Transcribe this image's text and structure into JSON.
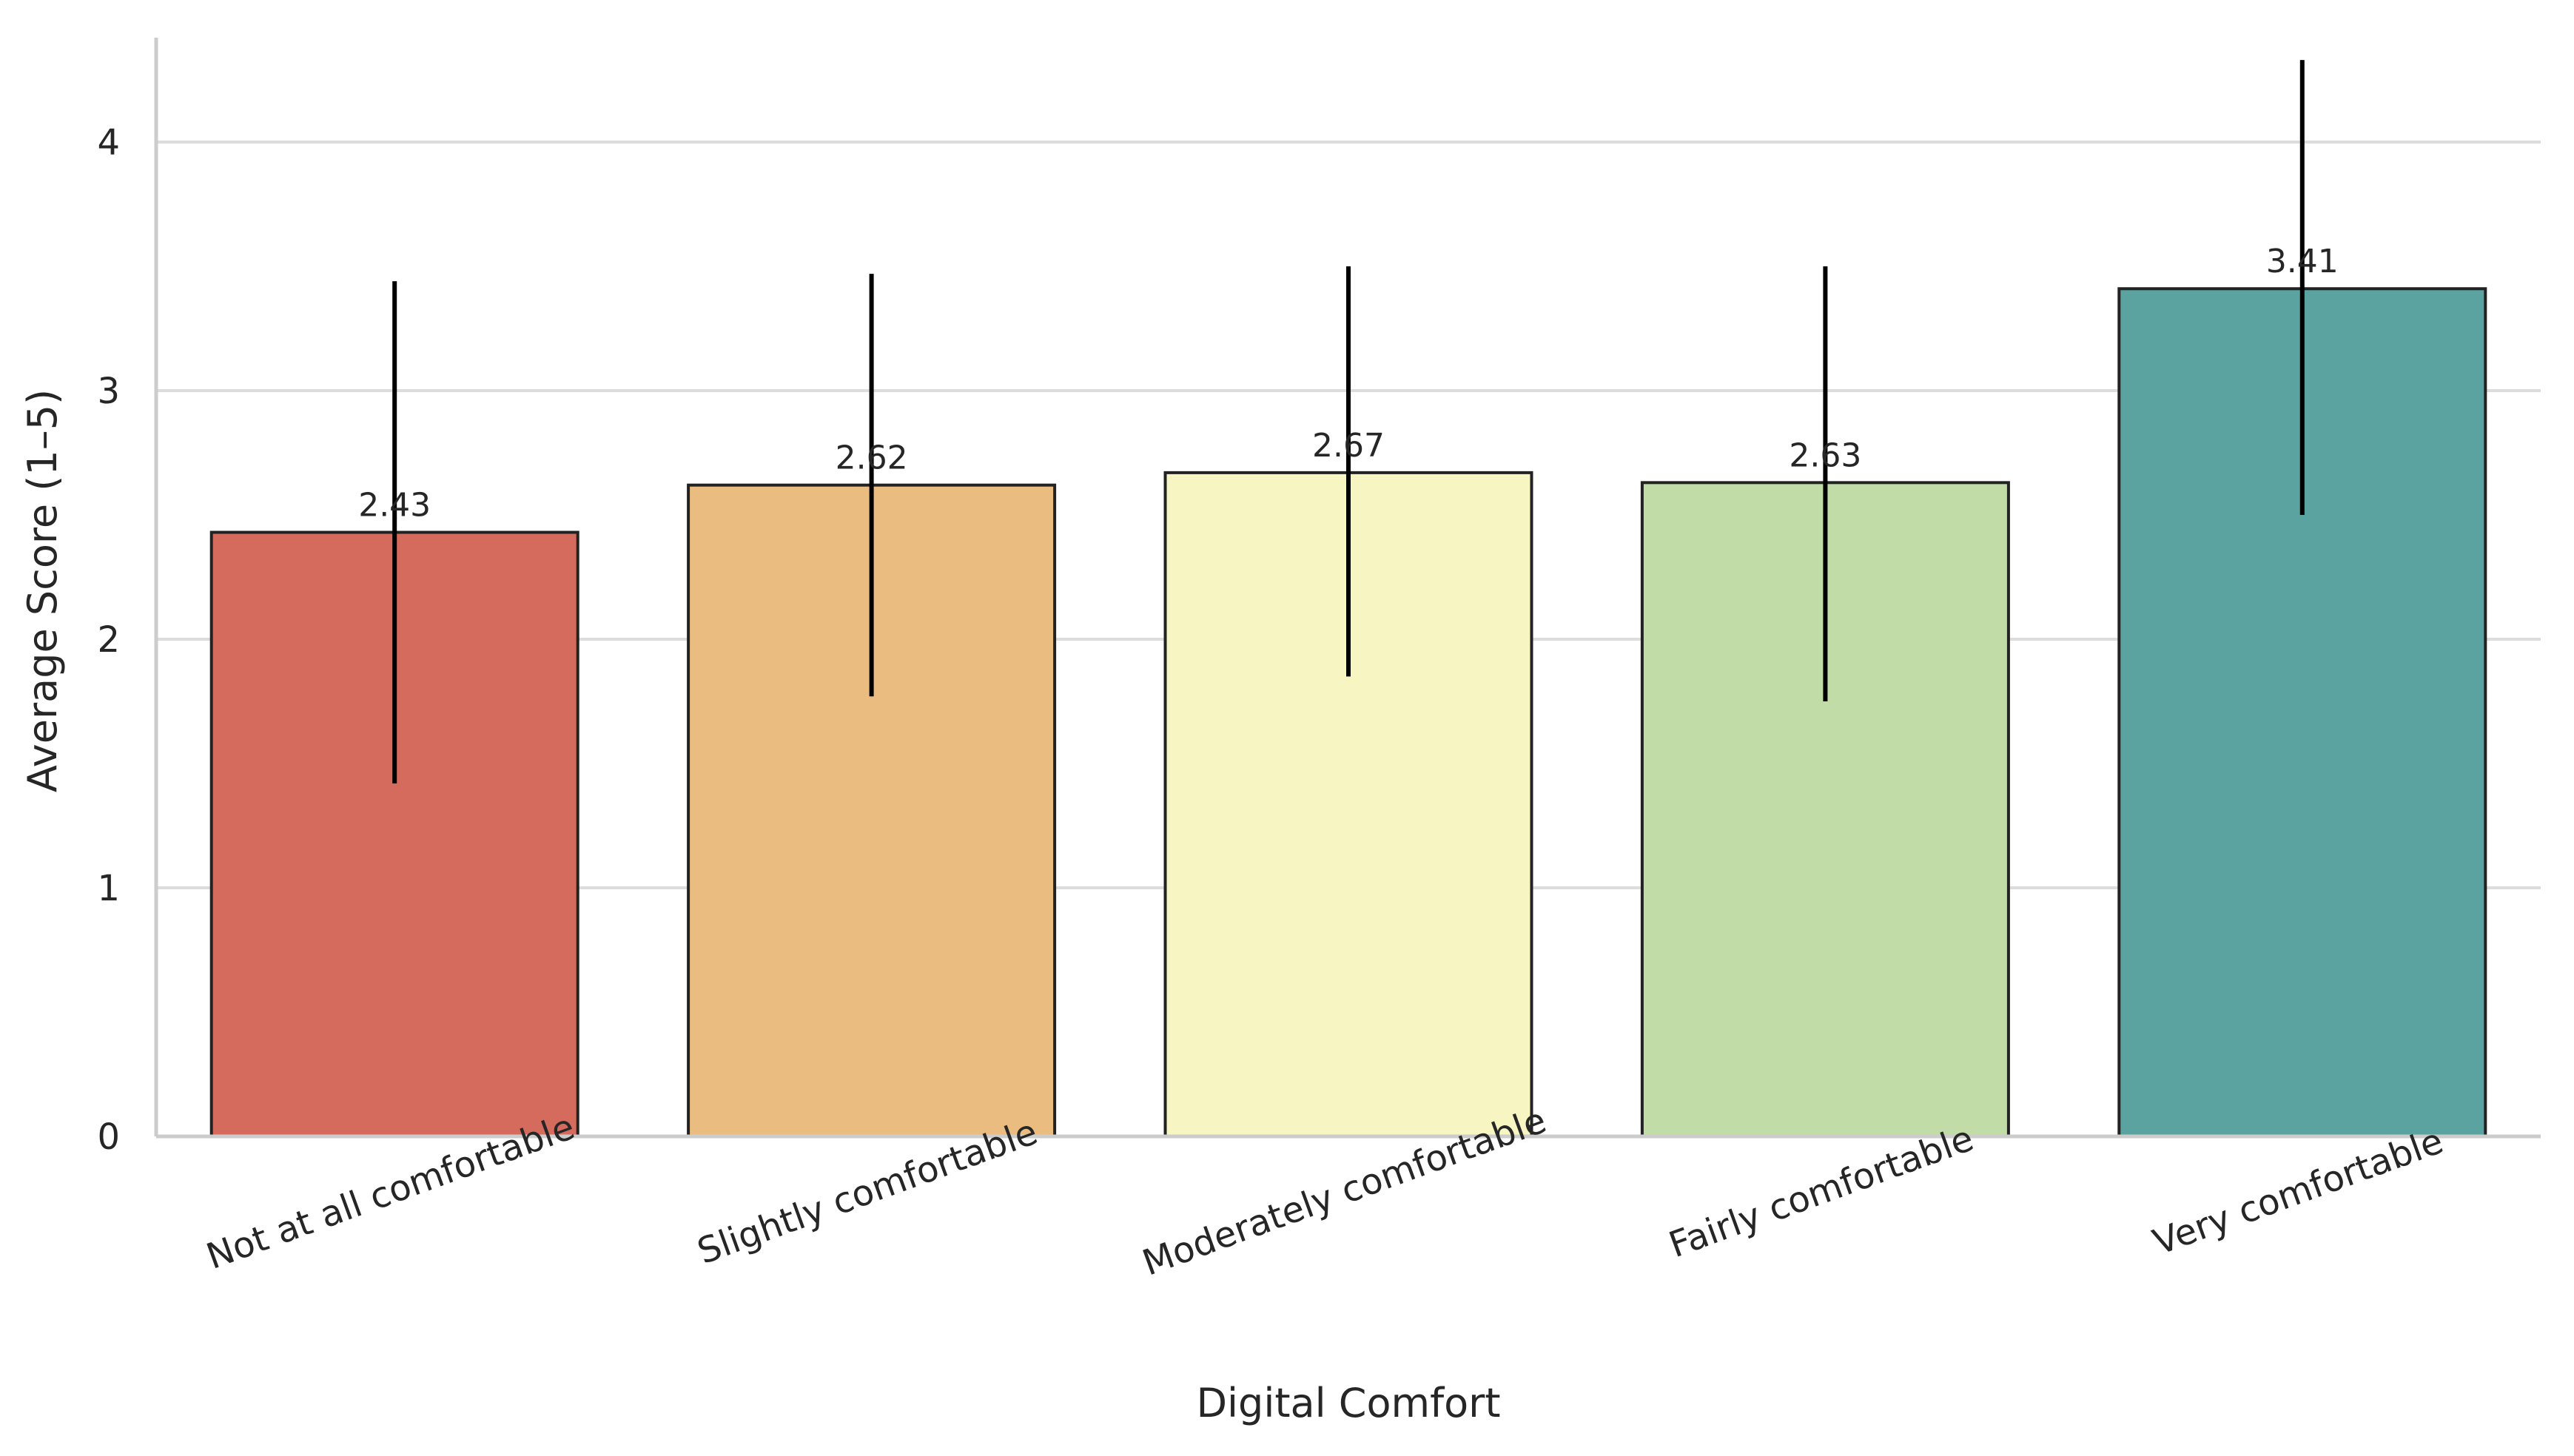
{
  "chart_data": {
    "type": "bar",
    "title": "",
    "xlabel": "Digital Comfort",
    "ylabel": "Average Score (1–5)",
    "categories": [
      "Not at all comfortable",
      "Slightly comfortable",
      "Moderately comfortable",
      "Fairly comfortable",
      "Very comfortable"
    ],
    "values": [
      2.43,
      2.62,
      2.67,
      2.63,
      3.41
    ],
    "value_labels": [
      "2.43",
      "2.62",
      "2.67",
      "2.63",
      "3.41"
    ],
    "error_bars": [
      [
        1.42,
        3.44
      ],
      [
        1.77,
        3.47
      ],
      [
        1.85,
        3.5
      ],
      [
        1.75,
        3.5
      ],
      [
        2.5,
        4.33
      ]
    ],
    "colors": [
      "#d56b5c",
      "#ebbc80",
      "#f7f5c2",
      "#c2dca8",
      "#5ba3a0"
    ],
    "ylim": [
      0,
      4.42
    ],
    "yticks": [
      0,
      1,
      2,
      3,
      4
    ],
    "grid": "horizontal",
    "legend": "none"
  }
}
